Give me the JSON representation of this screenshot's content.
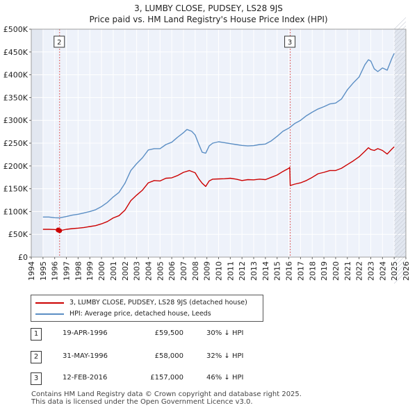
{
  "title": {
    "line1": "3, LUMBY CLOSE, PUDSEY, LS28 9JS",
    "line2": "Price paid vs. HM Land Registry's House Price Index (HPI)"
  },
  "chart_data": {
    "type": "line",
    "title": "3, LUMBY CLOSE, PUDSEY, LS28 9JS — Price paid vs. HM Land Registry's House Price Index (HPI)",
    "xlabel": "",
    "ylabel": "",
    "xlim": [
      1994,
      2026
    ],
    "ylim": [
      0,
      500000
    ],
    "x_ticks": [
      1994,
      1995,
      1996,
      1997,
      1998,
      1999,
      2000,
      2001,
      2002,
      2003,
      2004,
      2005,
      2006,
      2007,
      2008,
      2009,
      2010,
      2011,
      2012,
      2013,
      2014,
      2015,
      2016,
      2017,
      2018,
      2019,
      2020,
      2021,
      2022,
      2023,
      2024,
      2025,
      2026
    ],
    "y_ticks": [
      0,
      50000,
      100000,
      150000,
      200000,
      250000,
      300000,
      350000,
      400000,
      450000,
      500000
    ],
    "y_tick_labels": [
      "£0",
      "£50K",
      "£100K",
      "£150K",
      "£200K",
      "£250K",
      "£300K",
      "£350K",
      "£400K",
      "£450K",
      "£500K"
    ],
    "grid": true,
    "series": [
      {
        "name": "3, LUMBY CLOSE, PUDSEY, LS28 9JS (detached house)",
        "color": "#cc0000",
        "x": [
          1995.0,
          1995.5,
          1996.0,
          1996.3,
          1996.42,
          1997.0,
          1997.5,
          1998.0,
          1998.5,
          1999.0,
          1999.5,
          2000.0,
          2000.5,
          2001.0,
          2001.5,
          2002.0,
          2002.5,
          2003.0,
          2003.5,
          2004.0,
          2004.5,
          2005.0,
          2005.5,
          2006.0,
          2006.5,
          2007.0,
          2007.5,
          2008.0,
          2008.3,
          2008.6,
          2008.9,
          2009.2,
          2009.5,
          2010.0,
          2010.5,
          2011.0,
          2011.5,
          2012.0,
          2012.5,
          2013.0,
          2013.5,
          2014.0,
          2014.5,
          2015.0,
          2015.5,
          2016.0,
          2016.08,
          2016.12,
          2016.5,
          2017.0,
          2017.5,
          2018.0,
          2018.5,
          2019.0,
          2019.5,
          2020.0,
          2020.5,
          2021.0,
          2021.5,
          2022.0,
          2022.5,
          2022.8,
          2023.0,
          2023.3,
          2023.6,
          2024.0,
          2024.4,
          2024.8,
          2025.0
        ],
        "values": [
          61000,
          61000,
          60500,
          59500,
          58000,
          61000,
          62500,
          63500,
          65000,
          67000,
          69000,
          73000,
          78000,
          86000,
          91000,
          103000,
          124000,
          136000,
          147000,
          163000,
          168000,
          167000,
          173000,
          174000,
          179000,
          186000,
          190000,
          185000,
          172000,
          162000,
          155000,
          167000,
          171000,
          171500,
          172000,
          173000,
          171000,
          168000,
          170000,
          169500,
          171000,
          170000,
          175000,
          180000,
          188000,
          195000,
          197000,
          157000,
          160000,
          163000,
          168000,
          175000,
          183000,
          186000,
          190000,
          190000,
          195000,
          203000,
          211000,
          220000,
          232000,
          240000,
          236000,
          234000,
          238000,
          234000,
          226000,
          237000,
          242000
        ]
      },
      {
        "name": "HPI: Average price, detached house, Leeds",
        "color": "#5b8ec4",
        "x": [
          1995.0,
          1995.5,
          1996.0,
          1996.4,
          1997.0,
          1997.5,
          1998.0,
          1998.5,
          1999.0,
          1999.5,
          2000.0,
          2000.5,
          2001.0,
          2001.5,
          2002.0,
          2002.5,
          2003.0,
          2003.5,
          2004.0,
          2004.5,
          2005.0,
          2005.5,
          2006.0,
          2006.5,
          2007.0,
          2007.3,
          2007.7,
          2008.0,
          2008.3,
          2008.6,
          2008.9,
          2009.2,
          2009.5,
          2010.0,
          2010.5,
          2011.0,
          2011.5,
          2012.0,
          2012.5,
          2013.0,
          2013.5,
          2014.0,
          2014.5,
          2015.0,
          2015.5,
          2016.0,
          2016.5,
          2017.0,
          2017.5,
          2018.0,
          2018.5,
          2019.0,
          2019.5,
          2020.0,
          2020.5,
          2021.0,
          2021.5,
          2022.0,
          2022.5,
          2022.8,
          2023.0,
          2023.3,
          2023.6,
          2024.0,
          2024.4,
          2024.8,
          2025.0
        ],
        "values": [
          88000,
          88000,
          86500,
          86000,
          89000,
          92000,
          94000,
          97000,
          100000,
          104000,
          111000,
          120000,
          132000,
          142000,
          162000,
          190000,
          205000,
          218000,
          235000,
          238000,
          238000,
          247000,
          252000,
          263000,
          273000,
          280000,
          276000,
          268000,
          248000,
          230000,
          228000,
          244000,
          250000,
          253000,
          251000,
          249000,
          247000,
          245000,
          244000,
          244500,
          247000,
          248000,
          255000,
          265000,
          276000,
          283000,
          293000,
          300000,
          310000,
          318000,
          325000,
          330000,
          336000,
          338000,
          347000,
          367000,
          382000,
          395000,
          422000,
          433000,
          430000,
          413000,
          407000,
          415000,
          410000,
          436000,
          447000
        ]
      }
    ],
    "annotations": [
      {
        "label": "2",
        "x": 1996.42
      },
      {
        "label": "3",
        "x": 2016.12
      }
    ],
    "sale_points": [
      {
        "label": "1",
        "x": 1996.3,
        "y": 59500
      },
      {
        "label": "2",
        "x": 1996.42,
        "y": 58000
      }
    ]
  },
  "legend": {
    "items": [
      {
        "label": "3, LUMBY CLOSE, PUDSEY, LS28 9JS (detached house)",
        "color": "#cc0000"
      },
      {
        "label": "HPI: Average price, detached house, Leeds",
        "color": "#5b8ec4"
      }
    ]
  },
  "transactions": [
    {
      "marker": "1",
      "date": "19-APR-1996",
      "price": "£59,500",
      "hpi": "30% ↓ HPI"
    },
    {
      "marker": "2",
      "date": "31-MAY-1996",
      "price": "£58,000",
      "hpi": "32% ↓ HPI"
    },
    {
      "marker": "3",
      "date": "12-FEB-2016",
      "price": "£157,000",
      "hpi": "46% ↓ HPI"
    }
  ],
  "footer": {
    "line1": "Contains HM Land Registry data © Crown copyright and database right 2025.",
    "line2": "This data is licensed under the Open Government Licence v3.0."
  }
}
